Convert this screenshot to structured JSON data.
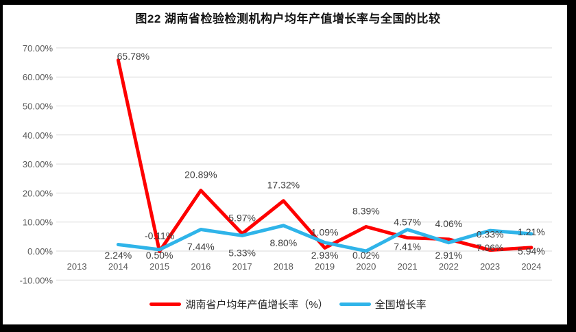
{
  "window": {
    "background": "#ffffff",
    "frame_color": "#000000"
  },
  "chart_data": {
    "type": "line",
    "title": "图22 湖南省检验检测机构户均年产值增长率与全国的比较",
    "categories": [
      "2013",
      "2014",
      "2015",
      "2016",
      "2017",
      "2018",
      "2019",
      "2020",
      "2021",
      "2022",
      "2023",
      "2024"
    ],
    "series": [
      {
        "id": "hunan",
        "name": "湖南省户均年产值增长率（%）",
        "color": "#FE0000",
        "label_position": "above",
        "values": [
          null,
          65.78,
          -0.11,
          20.89,
          5.97,
          17.32,
          1.09,
          8.39,
          4.57,
          4.06,
          0.33,
          1.21
        ],
        "labels": [
          null,
          "65.78%",
          "-0.11%",
          "20.89%",
          "5.97%",
          "17.32%",
          "1.09%",
          "8.39%",
          "4.57%",
          "4.06%",
          "0.33%",
          "1.21%"
        ]
      },
      {
        "id": "national",
        "name": "全国增长率",
        "color": "#2FB4E9",
        "label_position": "below",
        "values": [
          null,
          2.24,
          0.5,
          7.44,
          5.33,
          8.8,
          2.93,
          0.02,
          7.41,
          2.91,
          7.06,
          5.94
        ],
        "labels": [
          null,
          "2.24%",
          "0.50%",
          "7.44%",
          "5.33%",
          "8.80%",
          "2.93%",
          "0.02%",
          "7.41%",
          "2.91%",
          "7.06%",
          "5.94%"
        ]
      }
    ],
    "y_ticks": [
      70,
      60,
      50,
      40,
      30,
      20,
      10,
      0,
      -10
    ],
    "y_tick_labels": [
      "70.00%",
      "60.00%",
      "50.00%",
      "40.00%",
      "30.00%",
      "20.00%",
      "10.00%",
      "0.00%",
      "-10.00%"
    ],
    "ylim": [
      -10,
      70
    ],
    "grid": true,
    "legend_position": "bottom",
    "grid_color": "#D9D9D9",
    "axis_text_color": "#595959",
    "label_text_color": "#404040"
  }
}
